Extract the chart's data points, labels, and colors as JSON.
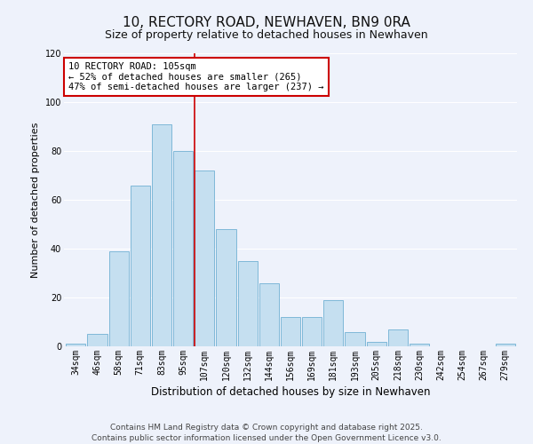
{
  "title": "10, RECTORY ROAD, NEWHAVEN, BN9 0RA",
  "subtitle": "Size of property relative to detached houses in Newhaven",
  "xlabel": "Distribution of detached houses by size in Newhaven",
  "ylabel": "Number of detached properties",
  "categories": [
    "34sqm",
    "46sqm",
    "58sqm",
    "71sqm",
    "83sqm",
    "95sqm",
    "107sqm",
    "120sqm",
    "132sqm",
    "144sqm",
    "156sqm",
    "169sqm",
    "181sqm",
    "193sqm",
    "205sqm",
    "218sqm",
    "230sqm",
    "242sqm",
    "254sqm",
    "267sqm",
    "279sqm"
  ],
  "values": [
    1,
    5,
    39,
    66,
    91,
    80,
    72,
    48,
    35,
    26,
    12,
    12,
    19,
    6,
    2,
    7,
    1,
    0,
    0,
    0,
    1
  ],
  "bar_color": "#c5dff0",
  "bar_edge_color": "#7fb8d8",
  "bg_color": "#eef2fb",
  "grid_color": "#ffffff",
  "vline_x": 6.0,
  "vline_label": "10 RECTORY ROAD: 105sqm",
  "annotation_line1": "← 52% of detached houses are smaller (265)",
  "annotation_line2": "47% of semi-detached houses are larger (237) →",
  "footnote1": "Contains HM Land Registry data © Crown copyright and database right 2025.",
  "footnote2": "Contains public sector information licensed under the Open Government Licence v3.0.",
  "ylim": [
    0,
    120
  ],
  "yticks": [
    0,
    20,
    40,
    60,
    80,
    100,
    120
  ],
  "title_fontsize": 11,
  "subtitle_fontsize": 9,
  "xlabel_fontsize": 8.5,
  "ylabel_fontsize": 8,
  "tick_fontsize": 7,
  "footnote_fontsize": 6.5,
  "annotation_fontsize": 7.5,
  "annotation_box_color": "#ffffff",
  "annotation_box_edge": "#cc0000",
  "vline_color": "#cc0000"
}
